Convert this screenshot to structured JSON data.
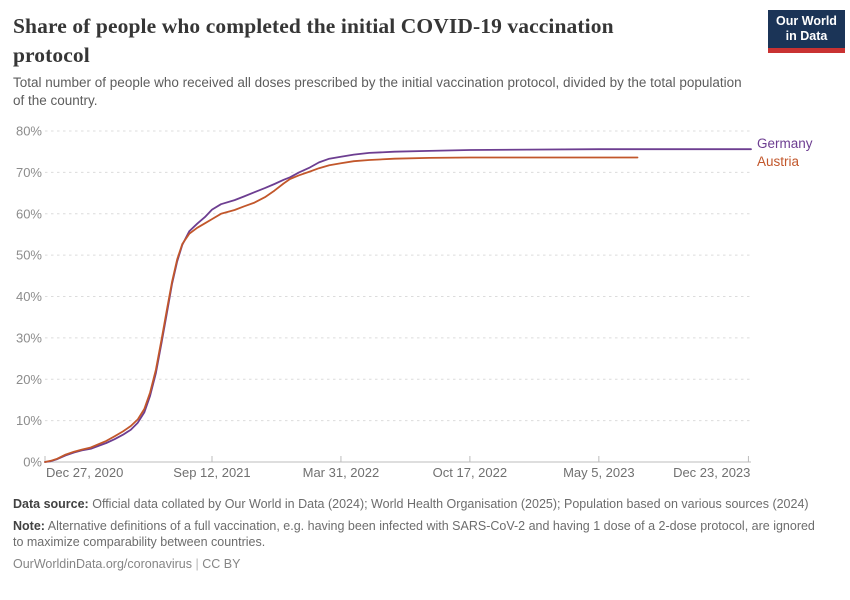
{
  "header": {
    "title_lines": [
      "Share of people who completed the initial COVID-19 vaccination",
      "protocol"
    ],
    "subtitle_lines": [
      "Total number of people who received all doses prescribed by the initial vaccination protocol, divided by the total population",
      "of the country."
    ]
  },
  "logo": {
    "line1": "Our World",
    "line2": "in Data",
    "bg_color": "#1b3457",
    "accent_color": "#c93232"
  },
  "chart_data": {
    "type": "line",
    "title": "Share of people who completed the initial COVID-19 vaccination protocol",
    "subtitle": "Total number of people who received all doses prescribed by the initial vaccination protocol, divided by the total population of the country.",
    "xlabel": "",
    "ylabel": "",
    "ylim": [
      0,
      80
    ],
    "grid": true,
    "legend_position": "end-of-line-right",
    "x_domain": [
      "2020-12-27",
      "2023-12-27"
    ],
    "y_ticks": [
      {
        "value": 0,
        "label": "0%"
      },
      {
        "value": 10,
        "label": "10%"
      },
      {
        "value": 20,
        "label": "20%"
      },
      {
        "value": 30,
        "label": "30%"
      },
      {
        "value": 40,
        "label": "40%"
      },
      {
        "value": 50,
        "label": "50%"
      },
      {
        "value": 60,
        "label": "60%"
      },
      {
        "value": 70,
        "label": "70%"
      },
      {
        "value": 80,
        "label": "80%"
      }
    ],
    "x_ticks": [
      {
        "date": "2020-12-27",
        "label": "Dec 27, 2020",
        "align": "start"
      },
      {
        "date": "2021-09-12",
        "label": "Sep 12, 2021",
        "align": "middle"
      },
      {
        "date": "2022-03-31",
        "label": "Mar 31, 2022",
        "align": "middle"
      },
      {
        "date": "2022-10-17",
        "label": "Oct 17, 2022",
        "align": "middle"
      },
      {
        "date": "2023-05-05",
        "label": "May 5, 2023",
        "align": "middle"
      },
      {
        "date": "2023-12-23",
        "label": "Dec 23, 2023",
        "align": "end"
      }
    ],
    "series": [
      {
        "name": "Germany",
        "color": "#6d3e91",
        "points": [
          [
            "2020-12-27",
            0
          ],
          [
            "2021-01-05",
            0.2
          ],
          [
            "2021-01-15",
            0.7
          ],
          [
            "2021-01-28",
            1.6
          ],
          [
            "2021-02-10",
            2.3
          ],
          [
            "2021-02-22",
            2.8
          ],
          [
            "2021-03-08",
            3.2
          ],
          [
            "2021-03-20",
            3.9
          ],
          [
            "2021-04-01",
            4.6
          ],
          [
            "2021-04-14",
            5.5
          ],
          [
            "2021-04-27",
            6.6
          ],
          [
            "2021-05-09",
            7.8
          ],
          [
            "2021-05-20",
            9.5
          ],
          [
            "2021-05-30",
            12.0
          ],
          [
            "2021-06-08",
            16.0
          ],
          [
            "2021-06-17",
            21.5
          ],
          [
            "2021-06-26",
            29.0
          ],
          [
            "2021-07-04",
            36.0
          ],
          [
            "2021-07-12",
            43.0
          ],
          [
            "2021-07-20",
            48.5
          ],
          [
            "2021-07-28",
            52.5
          ],
          [
            "2021-08-08",
            55.8
          ],
          [
            "2021-08-20",
            57.6
          ],
          [
            "2021-09-01",
            59.2
          ],
          [
            "2021-09-12",
            61.0
          ],
          [
            "2021-09-26",
            62.3
          ],
          [
            "2021-10-17",
            63.3
          ],
          [
            "2021-11-01",
            64.2
          ],
          [
            "2021-11-17",
            65.2
          ],
          [
            "2021-12-03",
            66.2
          ],
          [
            "2021-12-18",
            67.2
          ],
          [
            "2022-01-01",
            68.2
          ],
          [
            "2022-01-11",
            68.8
          ],
          [
            "2022-01-25",
            70.0
          ],
          [
            "2022-02-11",
            71.2
          ],
          [
            "2022-02-25",
            72.4
          ],
          [
            "2022-03-13",
            73.3
          ],
          [
            "2022-03-31",
            73.8
          ],
          [
            "2022-04-20",
            74.3
          ],
          [
            "2022-05-14",
            74.7
          ],
          [
            "2022-06-22",
            75.0
          ],
          [
            "2022-08-15",
            75.2
          ],
          [
            "2022-10-17",
            75.4
          ],
          [
            "2023-01-15",
            75.5
          ],
          [
            "2023-05-05",
            75.6
          ],
          [
            "2023-09-01",
            75.6
          ],
          [
            "2023-12-27",
            75.6
          ]
        ]
      },
      {
        "name": "Austria",
        "color": "#c2572b",
        "points": [
          [
            "2020-12-27",
            0
          ],
          [
            "2021-01-05",
            0.3
          ],
          [
            "2021-01-15",
            0.8
          ],
          [
            "2021-01-28",
            1.8
          ],
          [
            "2021-02-10",
            2.5
          ],
          [
            "2021-02-22",
            3.0
          ],
          [
            "2021-03-08",
            3.5
          ],
          [
            "2021-03-20",
            4.3
          ],
          [
            "2021-04-01",
            5.1
          ],
          [
            "2021-04-14",
            6.2
          ],
          [
            "2021-04-27",
            7.4
          ],
          [
            "2021-05-09",
            8.7
          ],
          [
            "2021-05-20",
            10.3
          ],
          [
            "2021-05-30",
            12.8
          ],
          [
            "2021-06-08",
            16.8
          ],
          [
            "2021-06-17",
            22.3
          ],
          [
            "2021-06-26",
            29.8
          ],
          [
            "2021-07-04",
            36.8
          ],
          [
            "2021-07-12",
            43.5
          ],
          [
            "2021-07-20",
            49.0
          ],
          [
            "2021-07-28",
            52.7
          ],
          [
            "2021-08-08",
            55.2
          ],
          [
            "2021-08-20",
            56.6
          ],
          [
            "2021-09-01",
            57.7
          ],
          [
            "2021-09-12",
            58.7
          ],
          [
            "2021-09-26",
            60.0
          ],
          [
            "2021-10-17",
            60.9
          ],
          [
            "2021-11-01",
            61.8
          ],
          [
            "2021-11-17",
            62.7
          ],
          [
            "2021-12-03",
            64.0
          ],
          [
            "2021-12-18",
            65.6
          ],
          [
            "2022-01-01",
            67.3
          ],
          [
            "2022-01-11",
            68.4
          ],
          [
            "2022-01-25",
            69.3
          ],
          [
            "2022-02-11",
            70.2
          ],
          [
            "2022-02-25",
            71.0
          ],
          [
            "2022-03-13",
            71.7
          ],
          [
            "2022-03-31",
            72.2
          ],
          [
            "2022-04-20",
            72.7
          ],
          [
            "2022-05-14",
            73.0
          ],
          [
            "2022-06-22",
            73.3
          ],
          [
            "2022-08-15",
            73.5
          ],
          [
            "2022-10-17",
            73.6
          ],
          [
            "2023-01-15",
            73.6
          ],
          [
            "2023-05-05",
            73.6
          ],
          [
            "2023-07-04",
            73.6
          ]
        ]
      }
    ],
    "colors": {
      "gridline": "#dcdcdc",
      "axis": "#bcbcbc",
      "y_tick_label": "#8c8c8c",
      "x_tick_label": "#707070"
    }
  },
  "footer": {
    "source_label": "Data source:",
    "source_text": "Official data collated by Our World in Data (2024); World Health Organisation (2025); Population based on various sources (2024)",
    "note_label": "Note:",
    "note_text": "Alternative definitions of a full vaccination, e.g. having been infected with SARS-CoV-2 and having 1 dose of a 2-dose protocol, are ignored to maximize comparability between countries.",
    "link": "OurWorldinData.org/coronavirus",
    "separator": "|",
    "license": "CC BY"
  }
}
